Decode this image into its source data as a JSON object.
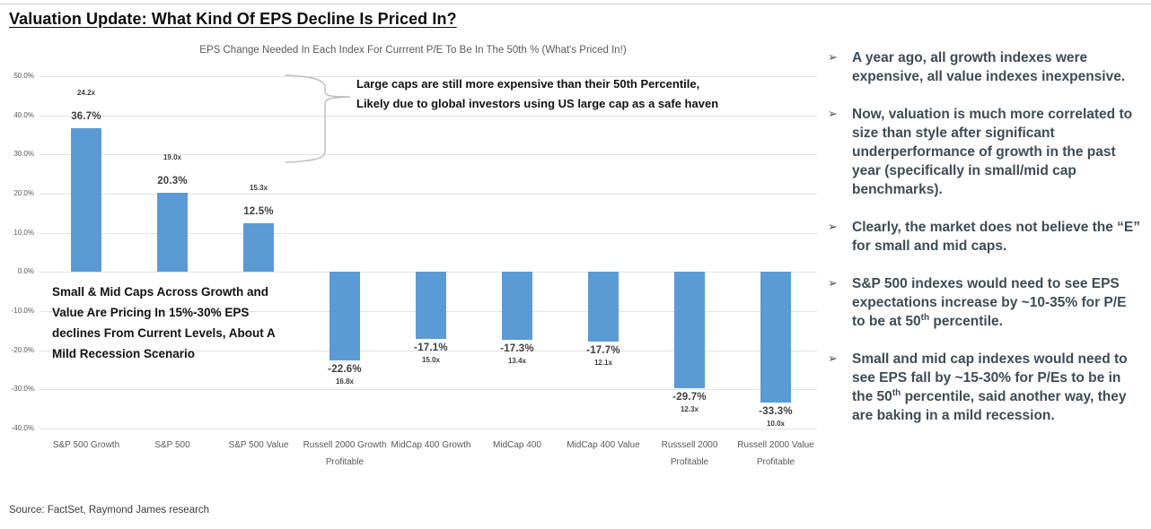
{
  "page": {
    "title": "Valuation Update: What Kind Of EPS Decline Is Priced In?",
    "source": "Source: FactSet, Raymond James research",
    "bullet_icon": "➢"
  },
  "colors": {
    "bar": "#5B9BD5",
    "bullet_text": "#3E4C55",
    "axis_text": "#595959",
    "grid": "#E3E3E3",
    "brace": "#BFBFBF"
  },
  "chart_data": {
    "type": "bar",
    "title": "EPS Change Needed In Each Index For Currrent P/E To Be In The 50th %  (What's Priced In!)",
    "categories": [
      "S&P 500 Growth",
      "S&P 500",
      "S&P 500 Value",
      "Russell 2000 Growth Profitable",
      "MidCap 400 Growth",
      "MidCap 400",
      "MidCap 400 Value",
      "Russsell 2000 Profitable",
      "Russell 2000 Value Profitable"
    ],
    "values": [
      36.7,
      20.3,
      12.5,
      -22.6,
      -17.1,
      -17.3,
      -17.7,
      -29.7,
      -33.3
    ],
    "value_labels": [
      "36.7%",
      "20.3%",
      "12.5%",
      "-22.6%",
      "-17.1%",
      "-17.3%",
      "-17.7%",
      "-29.7%",
      "-33.3%"
    ],
    "pe_multiple_labels": [
      "24.2x",
      "19.0x",
      "15.3x",
      "16.8x",
      "15.0x",
      "13.4x",
      "12.1x",
      "12.3x",
      "10.0x"
    ],
    "xlabel": "",
    "ylabel": "",
    "ylim": [
      -40,
      50
    ],
    "ytick_step": 10,
    "ytick_labels": [
      "50.0%",
      "40.0%",
      "30.0%",
      "20.0%",
      "10.0%",
      "0.0%",
      "-10.0%",
      "-20.0%",
      "-30.0%",
      "-40.0%"
    ],
    "grid": true,
    "legend": false,
    "annotations": {
      "large_caps": {
        "lines": [
          "Large caps are still more expensive than their 50th Percentile,",
          "Likely due to global investors using US large cap as a safe haven"
        ]
      },
      "small_mid": {
        "lines": [
          "Small & Mid Caps Across Growth and",
          "Value Are Pricing In 15%-30% EPS",
          "declines From Current Levels, About A",
          "Mild Recession Scenario"
        ]
      }
    }
  },
  "bullets": [
    {
      "text": "A year ago, all growth indexes were expensive, all value indexes inexpensive."
    },
    {
      "text": "Now, valuation is much more correlated to size than style after significant underperformance of growth in the past year (specifically in small/mid cap benchmarks)."
    },
    {
      "text": "Clearly, the market does not believe the “E” for small and mid caps."
    },
    {
      "text": "S&P 500 indexes would need to see EPS expectations increase by  ~10-35% for P/E to be at 50^{th} percentile."
    },
    {
      "text": "Small and mid cap indexes would need to see EPS fall by ~15-30% for P/Es to be in the 50^{th} percentile, said another way, they are baking in a mild recession."
    }
  ]
}
